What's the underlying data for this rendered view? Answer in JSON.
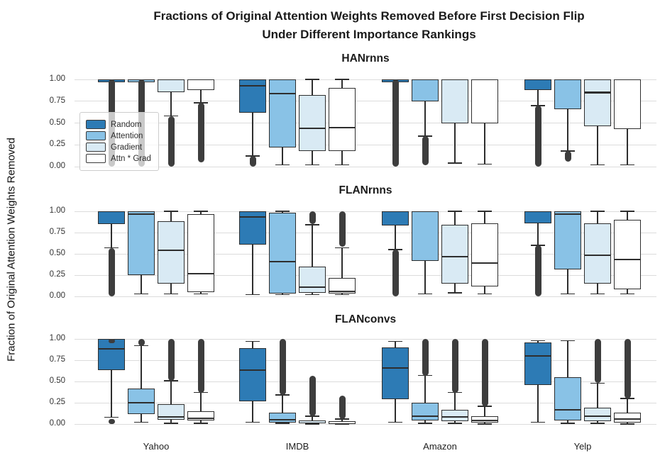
{
  "chart_data": {
    "type": "boxplot",
    "title_lines": [
      "Fractions of Original Attention Weights Removed Before First Decision Flip",
      "Under Different Importance Rankings"
    ],
    "ylabel": "Fraction of Original Attention Weights Removed",
    "categories": [
      "Yahoo",
      "IMDB",
      "Amazon",
      "Yelp"
    ],
    "series_names": [
      "Random",
      "Attention",
      "Gradient",
      "Attn * Grad"
    ],
    "series_colors": [
      "#2d7bb5",
      "#89c2e6",
      "#d9eaf4",
      "#ffffff"
    ],
    "legend_position": "upper left of first subplot",
    "grid": "horizontal",
    "ylim": [
      0,
      1
    ],
    "ytick_labels": [
      "1.00",
      "0.75",
      "0.50",
      "0.25",
      "0.00"
    ],
    "ytick_values": [
      1.0,
      0.75,
      0.5,
      0.25,
      0.0
    ],
    "gridline_values": [
      1.0,
      0.75,
      0.5,
      0.25,
      0.0
    ],
    "subplots": [
      {
        "title": "HANrnns",
        "groups": [
          {
            "category": "Yahoo",
            "boxes": [
              {
                "series": "Random",
                "whislo": 1.0,
                "q1": 1.0,
                "med": 1.0,
                "q3": 1.0,
                "whishi": 1.0,
                "fliers": [
                  [
                    0.0,
                    1.0
                  ]
                ]
              },
              {
                "series": "Attention",
                "whislo": 1.0,
                "q1": 1.0,
                "med": 1.0,
                "q3": 1.0,
                "whishi": 1.0,
                "fliers": [
                  [
                    0.0,
                    1.0
                  ]
                ]
              },
              {
                "series": "Gradient",
                "whislo": 0.58,
                "q1": 0.85,
                "med": 1.0,
                "q3": 1.0,
                "whishi": 1.0,
                "fliers": [
                  [
                    0.0,
                    0.58
                  ]
                ]
              },
              {
                "series": "Attn * Grad",
                "whislo": 0.73,
                "q1": 0.88,
                "med": 1.0,
                "q3": 1.0,
                "whishi": 1.0,
                "fliers": [
                  [
                    0.05,
                    0.73
                  ]
                ]
              }
            ]
          },
          {
            "category": "IMDB",
            "boxes": [
              {
                "series": "Random",
                "whislo": 0.12,
                "q1": 0.62,
                "med": 0.93,
                "q3": 1.0,
                "whishi": 1.0,
                "fliers": [
                  [
                    0.0,
                    0.12
                  ]
                ]
              },
              {
                "series": "Attention",
                "whislo": 0.02,
                "q1": 0.22,
                "med": 0.84,
                "q3": 1.0,
                "whishi": 1.0,
                "fliers": []
              },
              {
                "series": "Gradient",
                "whislo": 0.02,
                "q1": 0.18,
                "med": 0.44,
                "q3": 0.82,
                "whishi": 1.0,
                "fliers": []
              },
              {
                "series": "Attn * Grad",
                "whislo": 0.02,
                "q1": 0.18,
                "med": 0.45,
                "q3": 0.9,
                "whishi": 1.0,
                "fliers": []
              }
            ]
          },
          {
            "category": "Amazon",
            "boxes": [
              {
                "series": "Random",
                "whislo": 1.0,
                "q1": 1.0,
                "med": 1.0,
                "q3": 1.0,
                "whishi": 1.0,
                "fliers": [
                  [
                    0.0,
                    1.0
                  ]
                ]
              },
              {
                "series": "Attention",
                "whislo": 0.35,
                "q1": 0.75,
                "med": 1.0,
                "q3": 1.0,
                "whishi": 1.0,
                "fliers": [
                  [
                    0.02,
                    0.35
                  ]
                ]
              },
              {
                "series": "Gradient",
                "whislo": 0.04,
                "q1": 0.5,
                "med": 1.0,
                "q3": 1.0,
                "whishi": 1.0,
                "fliers": []
              },
              {
                "series": "Attn * Grad",
                "whislo": 0.03,
                "q1": 0.5,
                "med": 1.0,
                "q3": 1.0,
                "whishi": 1.0,
                "fliers": []
              }
            ]
          },
          {
            "category": "Yelp",
            "boxes": [
              {
                "series": "Random",
                "whislo": 0.7,
                "q1": 0.88,
                "med": 1.0,
                "q3": 1.0,
                "whishi": 1.0,
                "fliers": [
                  [
                    0.0,
                    0.7
                  ]
                ]
              },
              {
                "series": "Attention",
                "whislo": 0.18,
                "q1": 0.66,
                "med": 1.0,
                "q3": 1.0,
                "whishi": 1.0,
                "fliers": [
                  [
                    0.06,
                    0.18
                  ]
                ]
              },
              {
                "series": "Gradient",
                "whislo": 0.02,
                "q1": 0.46,
                "med": 0.85,
                "q3": 1.0,
                "whishi": 1.0,
                "fliers": []
              },
              {
                "series": "Attn * Grad",
                "whislo": 0.02,
                "q1": 0.43,
                "med": 1.0,
                "q3": 1.0,
                "whishi": 1.0,
                "fliers": []
              }
            ]
          }
        ]
      },
      {
        "title": "FLANrnns",
        "groups": [
          {
            "category": "Yahoo",
            "boxes": [
              {
                "series": "Random",
                "whislo": 0.57,
                "q1": 0.85,
                "med": 1.0,
                "q3": 1.0,
                "whishi": 1.0,
                "fliers": [
                  [
                    0.0,
                    0.57
                  ]
                ]
              },
              {
                "series": "Attention",
                "whislo": 0.03,
                "q1": 0.25,
                "med": 0.97,
                "q3": 1.0,
                "whishi": 1.0,
                "fliers": []
              },
              {
                "series": "Gradient",
                "whislo": 0.03,
                "q1": 0.15,
                "med": 0.54,
                "q3": 0.88,
                "whishi": 1.0,
                "fliers": []
              },
              {
                "series": "Attn * Grad",
                "whislo": 0.03,
                "q1": 0.05,
                "med": 0.27,
                "q3": 0.97,
                "whishi": 1.0,
                "fliers": []
              }
            ]
          },
          {
            "category": "IMDB",
            "boxes": [
              {
                "series": "Random",
                "whislo": 0.02,
                "q1": 0.61,
                "med": 0.93,
                "q3": 1.0,
                "whishi": 1.0,
                "fliers": []
              },
              {
                "series": "Attention",
                "whislo": 0.02,
                "q1": 0.03,
                "med": 0.41,
                "q3": 0.98,
                "whishi": 1.0,
                "fliers": []
              },
              {
                "series": "Gradient",
                "whislo": 0.02,
                "q1": 0.04,
                "med": 0.11,
                "q3": 0.35,
                "whishi": 0.84,
                "fliers": [
                  [
                    0.85,
                    1.0
                  ]
                ]
              },
              {
                "series": "Attn * Grad",
                "whislo": 0.02,
                "q1": 0.03,
                "med": 0.06,
                "q3": 0.22,
                "whishi": 0.57,
                "fliers": [
                  [
                    0.58,
                    1.0
                  ]
                ]
              }
            ]
          },
          {
            "category": "Amazon",
            "boxes": [
              {
                "series": "Random",
                "whislo": 0.55,
                "q1": 0.83,
                "med": 1.0,
                "q3": 1.0,
                "whishi": 1.0,
                "fliers": [
                  [
                    0.0,
                    0.55
                  ]
                ]
              },
              {
                "series": "Attention",
                "whislo": 0.03,
                "q1": 0.42,
                "med": 1.0,
                "q3": 1.0,
                "whishi": 1.0,
                "fliers": []
              },
              {
                "series": "Gradient",
                "whislo": 0.04,
                "q1": 0.15,
                "med": 0.47,
                "q3": 0.84,
                "whishi": 1.0,
                "fliers": []
              },
              {
                "series": "Attn * Grad",
                "whislo": 0.03,
                "q1": 0.12,
                "med": 0.39,
                "q3": 0.86,
                "whishi": 1.0,
                "fliers": []
              }
            ]
          },
          {
            "category": "Yelp",
            "boxes": [
              {
                "series": "Random",
                "whislo": 0.6,
                "q1": 0.86,
                "med": 1.0,
                "q3": 1.0,
                "whishi": 1.0,
                "fliers": [
                  [
                    0.0,
                    0.6
                  ]
                ]
              },
              {
                "series": "Attention",
                "whislo": 0.03,
                "q1": 0.32,
                "med": 0.97,
                "q3": 1.0,
                "whishi": 1.0,
                "fliers": []
              },
              {
                "series": "Gradient",
                "whislo": 0.03,
                "q1": 0.15,
                "med": 0.48,
                "q3": 0.86,
                "whishi": 1.0,
                "fliers": []
              },
              {
                "series": "Attn * Grad",
                "whislo": 0.03,
                "q1": 0.08,
                "med": 0.43,
                "q3": 0.9,
                "whishi": 1.0,
                "fliers": []
              }
            ]
          }
        ]
      },
      {
        "title": "FLANconvs",
        "groups": [
          {
            "category": "Yahoo",
            "boxes": [
              {
                "series": "Random",
                "whislo": 0.08,
                "q1": 0.63,
                "med": 0.88,
                "q3": 1.0,
                "whishi": 1.0,
                "fliers": [
                  [
                    0.0,
                    0.06
                  ],
                  [
                    0.98,
                    1.0
                  ]
                ]
              },
              {
                "series": "Attention",
                "whislo": 0.02,
                "q1": 0.12,
                "med": 0.25,
                "q3": 0.42,
                "whishi": 0.92,
                "fliers": [
                  [
                    0.92,
                    1.0
                  ]
                ]
              },
              {
                "series": "Gradient",
                "whislo": 0.01,
                "q1": 0.05,
                "med": 0.08,
                "q3": 0.23,
                "whishi": 0.51,
                "fliers": [
                  [
                    0.51,
                    1.0
                  ]
                ]
              },
              {
                "series": "Attn * Grad",
                "whislo": 0.01,
                "q1": 0.04,
                "med": 0.07,
                "q3": 0.15,
                "whishi": 0.37,
                "fliers": [
                  [
                    0.37,
                    1.0
                  ]
                ]
              }
            ]
          },
          {
            "category": "IMDB",
            "boxes": [
              {
                "series": "Random",
                "whislo": 0.02,
                "q1": 0.27,
                "med": 0.63,
                "q3": 0.89,
                "whishi": 0.97,
                "fliers": []
              },
              {
                "series": "Attention",
                "whislo": 0.01,
                "q1": 0.02,
                "med": 0.05,
                "q3": 0.13,
                "whishi": 0.34,
                "fliers": [
                  [
                    0.34,
                    1.0
                  ]
                ]
              },
              {
                "series": "Gradient",
                "whislo": 0.0,
                "q1": 0.01,
                "med": 0.02,
                "q3": 0.04,
                "whishi": 0.09,
                "fliers": [
                  [
                    0.09,
                    0.57
                  ]
                ]
              },
              {
                "series": "Attn * Grad",
                "whislo": 0.0,
                "q1": 0.01,
                "med": 0.02,
                "q3": 0.03,
                "whishi": 0.06,
                "fliers": [
                  [
                    0.06,
                    0.33
                  ]
                ]
              }
            ]
          },
          {
            "category": "Amazon",
            "boxes": [
              {
                "series": "Random",
                "whislo": 0.02,
                "q1": 0.29,
                "med": 0.66,
                "q3": 0.9,
                "whishi": 0.97,
                "fliers": []
              },
              {
                "series": "Attention",
                "whislo": 0.01,
                "q1": 0.04,
                "med": 0.09,
                "q3": 0.25,
                "whishi": 0.57,
                "fliers": [
                  [
                    0.57,
                    1.0
                  ]
                ]
              },
              {
                "series": "Gradient",
                "whislo": 0.01,
                "q1": 0.03,
                "med": 0.08,
                "q3": 0.17,
                "whishi": 0.37,
                "fliers": [
                  [
                    0.37,
                    1.0
                  ]
                ]
              },
              {
                "series": "Attn * Grad",
                "whislo": 0.0,
                "q1": 0.02,
                "med": 0.04,
                "q3": 0.09,
                "whishi": 0.21,
                "fliers": [
                  [
                    0.21,
                    1.0
                  ]
                ]
              }
            ]
          },
          {
            "category": "Yelp",
            "boxes": [
              {
                "series": "Random",
                "whislo": 0.02,
                "q1": 0.46,
                "med": 0.8,
                "q3": 0.96,
                "whishi": 0.98,
                "fliers": []
              },
              {
                "series": "Attention",
                "whislo": 0.01,
                "q1": 0.04,
                "med": 0.17,
                "q3": 0.55,
                "whishi": 0.98,
                "fliers": []
              },
              {
                "series": "Gradient",
                "whislo": 0.01,
                "q1": 0.03,
                "med": 0.09,
                "q3": 0.19,
                "whishi": 0.48,
                "fliers": [
                  [
                    0.48,
                    1.0
                  ]
                ]
              },
              {
                "series": "Attn * Grad",
                "whislo": 0.0,
                "q1": 0.02,
                "med": 0.06,
                "q3": 0.13,
                "whishi": 0.3,
                "fliers": [
                  [
                    0.3,
                    1.0
                  ]
                ]
              }
            ]
          }
        ]
      }
    ],
    "style_colors": {
      "box_edge": "#2e2e2e",
      "flier": "#3d3d3d",
      "gridline": "#dcdcdc",
      "background": "#ffffff"
    }
  }
}
